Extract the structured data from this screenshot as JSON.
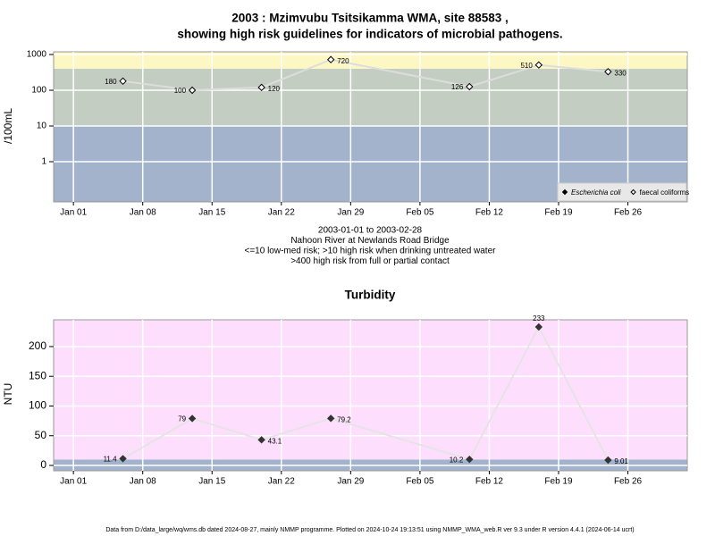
{
  "chart_data": [
    {
      "type": "line",
      "title": [
        "2003 : Mzimvubu Tsitsikamma WMA, site 88583 ,",
        "showing high risk guidelines for indicators of microbial pathogens."
      ],
      "ylabel": "/100mL",
      "log_scale": true,
      "grid": true,
      "legend": "lower right",
      "notes": [
        "2003-01-01 to 2003-02-28",
        "Nahoon River at Newlands Road Bridge",
        "<=10 low-med risk; >10 high risk when drinking untreated water",
        ">400 high risk from full or partial contact"
      ],
      "x": [
        "2003-01-06",
        "2003-01-13",
        "2003-01-20",
        "2003-01-27",
        "2003-02-10",
        "2003-02-17",
        "2003-02-24"
      ],
      "xlim": [
        "2002-12-30",
        "2003-03-04"
      ],
      "xticks": [
        {
          "value": "2003-01-01",
          "label": "Jan 01"
        },
        {
          "value": "2003-01-08",
          "label": "Jan 08"
        },
        {
          "value": "2003-01-15",
          "label": "Jan 15"
        },
        {
          "value": "2003-01-22",
          "label": "Jan 22"
        },
        {
          "value": "2003-01-29",
          "label": "Jan 29"
        },
        {
          "value": "2003-02-05",
          "label": "Feb 05"
        },
        {
          "value": "2003-02-12",
          "label": "Feb 12"
        },
        {
          "value": "2003-02-19",
          "label": "Feb 19"
        },
        {
          "value": "2003-02-26",
          "label": "Feb 26"
        }
      ],
      "ylim": [
        0.075,
        1190
      ],
      "yticks": [
        1,
        10,
        100,
        1000
      ],
      "bands": [
        {
          "to": 10,
          "color": "#a3b3cc"
        },
        {
          "from": 10,
          "to": 400,
          "color": "#c4cdc2"
        },
        {
          "from": 400,
          "color": "#fdf7c4"
        }
      ],
      "series": [
        {
          "name": "Escherichia coli",
          "color": "#000000",
          "marker": "filled",
          "line_color": "#dddddd",
          "values": [
            null,
            null,
            null,
            null,
            null,
            null,
            null
          ]
        },
        {
          "name": "faecal coliforms",
          "color": "#000000",
          "marker": "open",
          "line_color": "#dddddd",
          "values": [
            180,
            100,
            120,
            720,
            126,
            510,
            330
          ]
        }
      ]
    },
    {
      "type": "line",
      "title": "Turbidity",
      "ylabel": "NTU",
      "log_scale": false,
      "grid": true,
      "x": [
        "2003-01-06",
        "2003-01-13",
        "2003-01-20",
        "2003-01-27",
        "2003-02-10",
        "2003-02-17",
        "2003-02-24"
      ],
      "xlim": [
        "2002-12-30",
        "2003-03-04"
      ],
      "xticks": [
        {
          "value": "2003-01-01",
          "label": "Jan 01"
        },
        {
          "value": "2003-01-08",
          "label": "Jan 08"
        },
        {
          "value": "2003-01-15",
          "label": "Jan 15"
        },
        {
          "value": "2003-01-22",
          "label": "Jan 22"
        },
        {
          "value": "2003-01-29",
          "label": "Jan 29"
        },
        {
          "value": "2003-02-05",
          "label": "Feb 05"
        },
        {
          "value": "2003-02-12",
          "label": "Feb 12"
        },
        {
          "value": "2003-02-19",
          "label": "Feb 19"
        },
        {
          "value": "2003-02-26",
          "label": "Feb 26"
        }
      ],
      "ylim": [
        -9,
        245
      ],
      "yticks": [
        0,
        50,
        100,
        150,
        200
      ],
      "bands": [
        {
          "to": 10,
          "color": "#a3b3cc"
        },
        {
          "from": 10,
          "color": "#fddffd"
        }
      ],
      "series": [
        {
          "color": "#333333",
          "marker": "filled",
          "line_color": "#e4e4e4",
          "values": [
            11.4,
            79,
            43.1,
            79.2,
            10.2,
            233,
            9.01
          ]
        }
      ]
    }
  ],
  "footer": "Data from D:/data_large/wq/wms.db dated 2024-08-27, mainly NMMP programme. Plotted on 2024-10-24 19:13:51 using NMMP_WMA_web.R ver 9.3 under R version 4.4.1 (2024-06-14 ucrt)"
}
